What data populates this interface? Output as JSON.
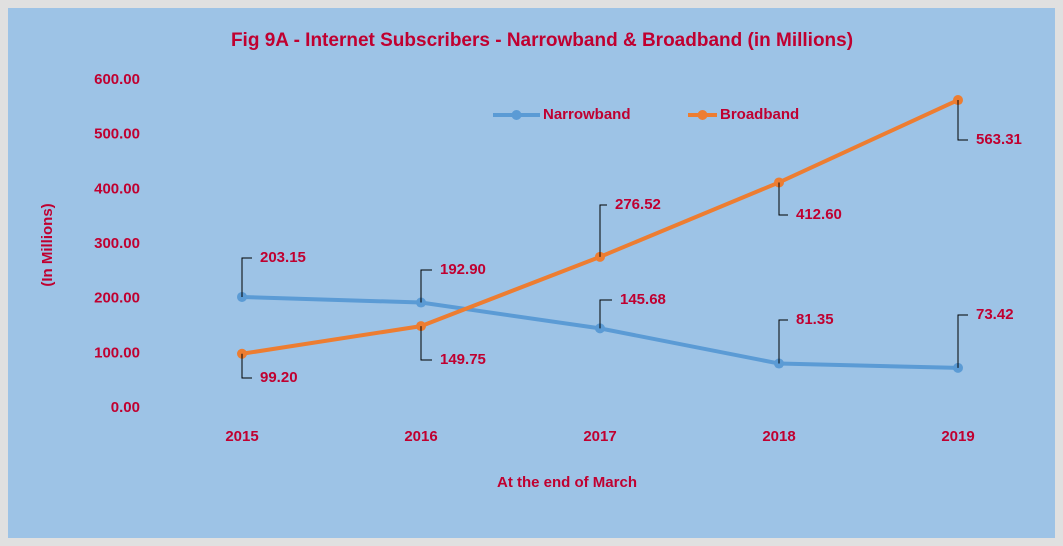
{
  "chart_data": {
    "type": "line",
    "title": "Fig 9A - Internet Subscribers - Narrowband & Broadband (in Millions)",
    "ylabel": "(In Millions)",
    "xlabel": "At the end of March",
    "categories": [
      "2015",
      "2016",
      "2017",
      "2018",
      "2019"
    ],
    "series": [
      {
        "name": "Narrowband",
        "color": "#5b9bd5",
        "values": [
          203.15,
          192.9,
          145.68,
          81.35,
          73.42
        ],
        "value_labels": [
          "203.15",
          "192.90",
          "145.68",
          "81.35",
          "73.42"
        ]
      },
      {
        "name": "Broadband",
        "color": "#ed7d31",
        "values": [
          99.2,
          149.75,
          276.52,
          412.6,
          563.31
        ],
        "value_labels": [
          "99.20",
          "149.75",
          "276.52",
          "412.60",
          "563.31"
        ]
      }
    ],
    "ylim": [
      0,
      600
    ],
    "yticks": [
      {
        "value": 0,
        "label": "0.00"
      },
      {
        "value": 100,
        "label": "100.00"
      },
      {
        "value": 200,
        "label": "200.00"
      },
      {
        "value": 300,
        "label": "300.00"
      },
      {
        "value": 400,
        "label": "400.00"
      },
      {
        "value": 500,
        "label": "500.00"
      },
      {
        "value": 600,
        "label": "600.00"
      }
    ],
    "legend": "top"
  }
}
